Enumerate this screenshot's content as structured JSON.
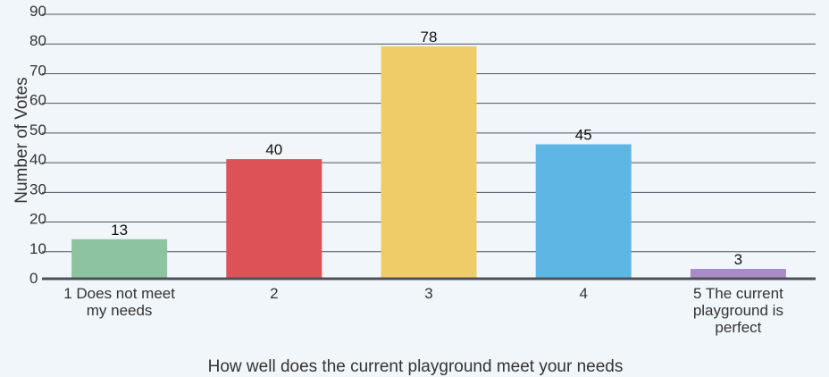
{
  "chart_data": {
    "type": "bar",
    "title": "",
    "xlabel": "How well does the current playground meet your needs",
    "ylabel": "Number of Votes",
    "ylim": [
      0,
      90
    ],
    "yticks": [
      0,
      10,
      20,
      30,
      40,
      50,
      60,
      70,
      80,
      90
    ],
    "grid": true,
    "legend": "none",
    "categories": [
      [
        "1 Does not meet",
        "my needs"
      ],
      [
        "2"
      ],
      [
        "3"
      ],
      [
        "4"
      ],
      [
        "5 The current",
        "playground is",
        "perfect"
      ]
    ],
    "values": [
      13,
      40,
      78,
      45,
      3
    ],
    "colors": [
      "#8dc3a0",
      "#dc5257",
      "#f0cc68",
      "#5db6e3",
      "#a88bc7"
    ]
  }
}
